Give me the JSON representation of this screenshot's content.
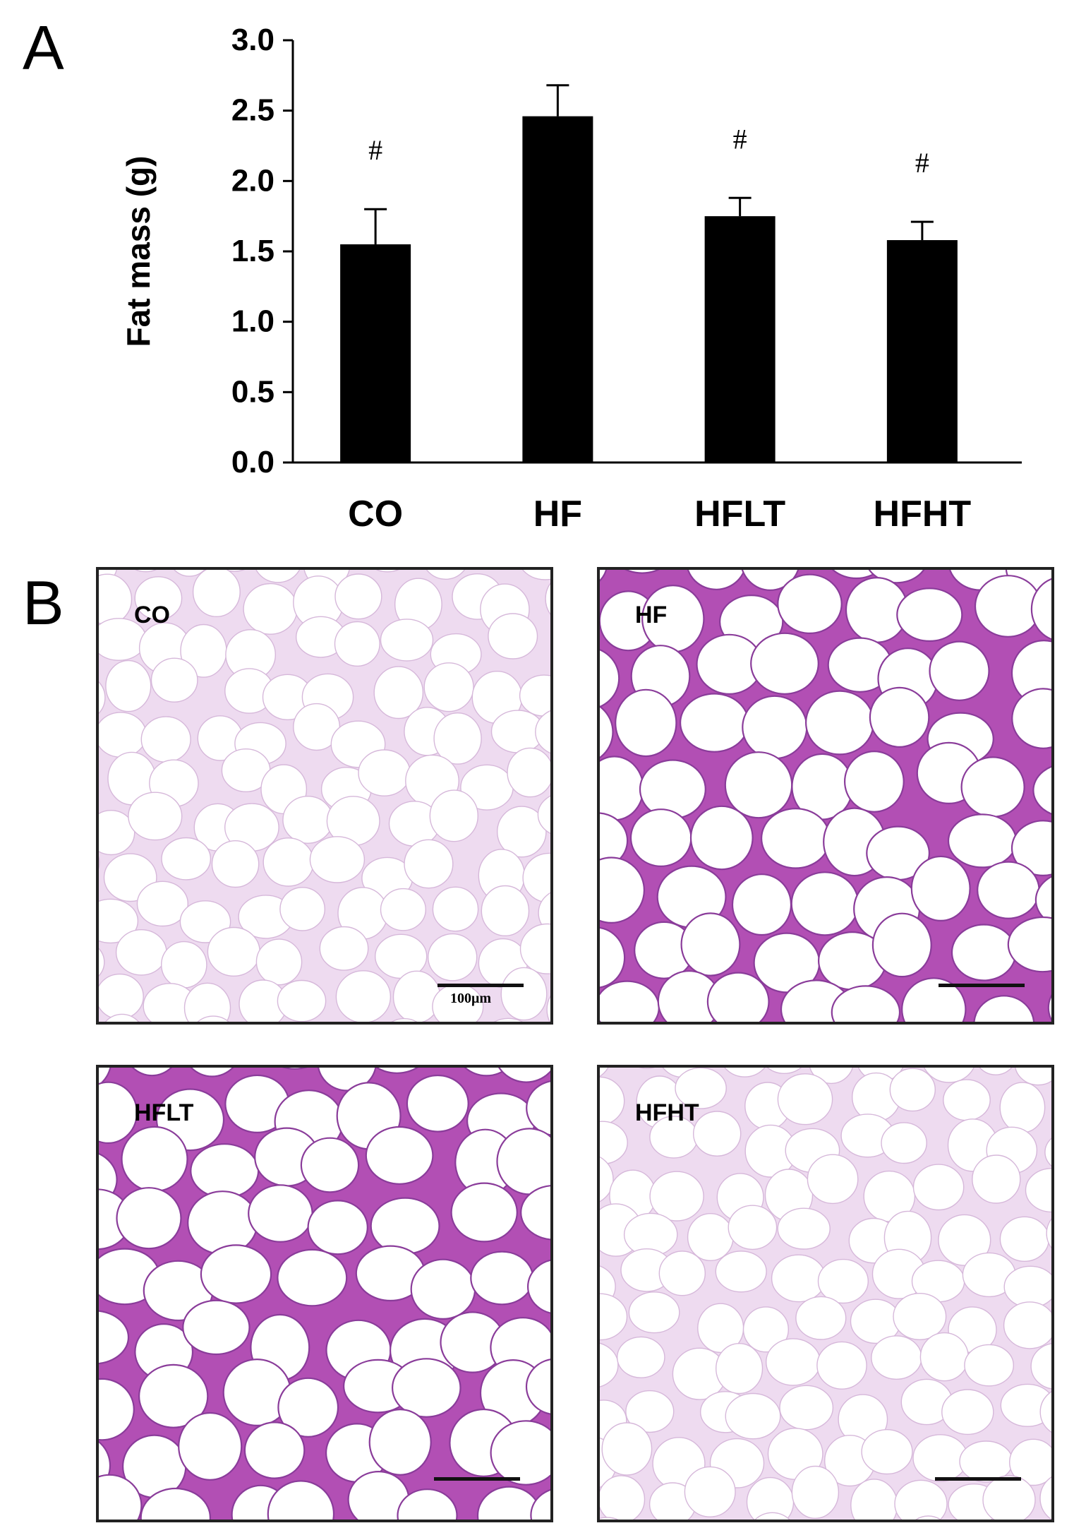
{
  "panel_a": {
    "letter": "A"
  },
  "panel_b": {
    "letter": "B"
  },
  "chart_data": {
    "type": "bar",
    "ylabel": "Fat mass (g)",
    "xlabel": "",
    "ylim": [
      0,
      3.0
    ],
    "yticks": [
      "0.0",
      "0.5",
      "1.0",
      "1.5",
      "2.0",
      "2.5",
      "3.0"
    ],
    "ytick_values": [
      0,
      0.5,
      1.0,
      1.5,
      2.0,
      2.5,
      3.0
    ],
    "categories": [
      "CO",
      "HF",
      "HFLT",
      "HFHT"
    ],
    "values": [
      1.55,
      2.46,
      1.75,
      1.58
    ],
    "errors": [
      0.25,
      0.22,
      0.13,
      0.13
    ],
    "annotations": [
      "#",
      "",
      "#",
      "#"
    ],
    "bar_color": "#000000",
    "grid": false
  },
  "micrographs": [
    {
      "label": "CO",
      "scale_text": "100μm",
      "stain": "light"
    },
    {
      "label": "HF",
      "scale_text": "",
      "stain": "heavy"
    },
    {
      "label": "HFLT",
      "scale_text": "",
      "stain": "heavy"
    },
    {
      "label": "HFHT",
      "scale_text": "",
      "stain": "light"
    }
  ]
}
